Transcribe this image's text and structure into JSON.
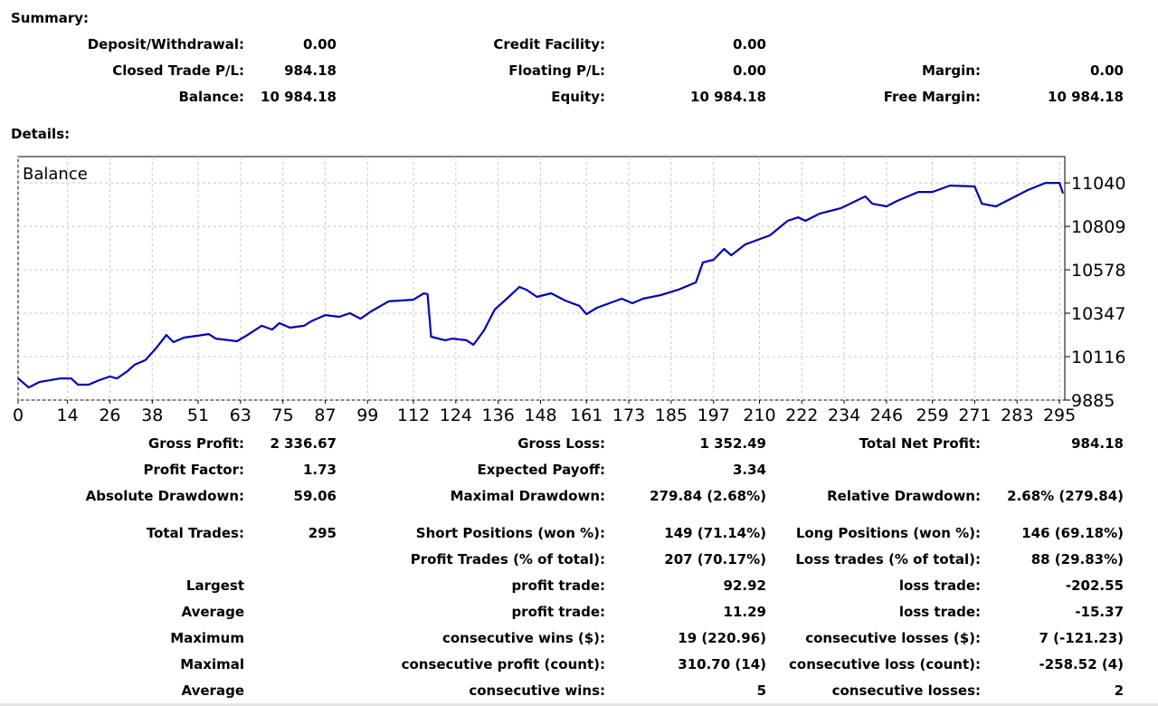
{
  "summary": {
    "heading": "Summary:",
    "rows": [
      [
        "Deposit/Withdrawal:",
        "0.00",
        "Credit Facility:",
        "0.00",
        null,
        null
      ],
      [
        "Closed Trade P/L:",
        "984.18",
        "Floating P/L:",
        "0.00",
        "Margin:",
        "0.00"
      ],
      [
        "Balance:",
        "10 984.18",
        "Equity:",
        "10 984.18",
        "Free Margin:",
        "10 984.18"
      ]
    ]
  },
  "details": {
    "heading": "Details:",
    "rows": [
      [
        "Gross Profit:",
        "2 336.67",
        "Gross Loss:",
        "1 352.49",
        "Total Net Profit:",
        "984.18"
      ],
      [
        "Profit Factor:",
        "1.73",
        "Expected Payoff:",
        "3.34",
        null,
        null
      ],
      [
        "Absolute Drawdown:",
        "59.06",
        "Maximal Drawdown:",
        "279.84 (2.68%)",
        "Relative Drawdown:",
        "2.68% (279.84)"
      ],
      [
        "Total Trades:",
        "295",
        "Short Positions (won %):",
        "149 (71.14%)",
        "Long Positions (won %):",
        "146 (69.18%)"
      ],
      [
        null,
        null,
        "Profit Trades (% of total):",
        "207 (70.17%)",
        "Loss trades (% of total):",
        "88 (29.83%)"
      ],
      [
        "Largest",
        null,
        "profit trade:",
        "92.92",
        "loss trade:",
        "-202.55"
      ],
      [
        "Average",
        null,
        "profit trade:",
        "11.29",
        "loss trade:",
        "-15.37"
      ],
      [
        "Maximum",
        null,
        "consecutive wins ($):",
        "19 (220.96)",
        "consecutive losses ($):",
        "7 (-121.23)"
      ],
      [
        "Maximal",
        null,
        "consecutive profit (count):",
        "310.70 (14)",
        "consecutive loss (count):",
        "-258.52 (4)"
      ],
      [
        "Average",
        null,
        "consecutive wins:",
        "5",
        "consecutive losses:",
        "2"
      ]
    ]
  },
  "chart_data": {
    "type": "line",
    "x": [
      0,
      3,
      6,
      12,
      15,
      17,
      20,
      23,
      26,
      28,
      31,
      33,
      36,
      39,
      42,
      44,
      47,
      54,
      56,
      62,
      65,
      69,
      72,
      74,
      77,
      81,
      83,
      87,
      91,
      94,
      97,
      100,
      105,
      112,
      115,
      116,
      117,
      121,
      123,
      127,
      129,
      132,
      135,
      139,
      142,
      144,
      147,
      151,
      155,
      159,
      161,
      164,
      171,
      174,
      177,
      182,
      187,
      192,
      194,
      197,
      200,
      202,
      206,
      213,
      218,
      221,
      223,
      227,
      233,
      240,
      242,
      246,
      249,
      255,
      259,
      264,
      271,
      273,
      277,
      280,
      286,
      291,
      295,
      296
    ],
    "series": [
      {
        "name": "Balance",
        "color": "#0000b4",
        "values": [
          10000,
          9952,
          9981,
          10000,
          10000,
          9967,
          9967,
          9991,
          10010,
          10000,
          10039,
          10073,
          10097,
          10159,
          10231,
          10193,
          10217,
          10236,
          10212,
          10198,
          10231,
          10280,
          10260,
          10294,
          10270,
          10280,
          10304,
          10337,
          10328,
          10347,
          10318,
          10357,
          10410,
          10419,
          10453,
          10448,
          10222,
          10203,
          10212,
          10203,
          10179,
          10256,
          10366,
          10434,
          10487,
          10472,
          10434,
          10453,
          10414,
          10386,
          10342,
          10376,
          10424,
          10400,
          10424,
          10443,
          10472,
          10511,
          10617,
          10631,
          10689,
          10655,
          10713,
          10761,
          10838,
          10857,
          10838,
          10876,
          10905,
          10968,
          10929,
          10915,
          10944,
          10992,
          10992,
          11026,
          11021,
          10929,
          10915,
          10944,
          11002,
          11040,
          11040,
          10984
        ]
      }
    ],
    "xlim": [
      0,
      296
    ],
    "ylim": [
      9885,
      11180
    ],
    "xticks": [
      0,
      14,
      26,
      38,
      51,
      63,
      75,
      87,
      99,
      112,
      124,
      136,
      148,
      161,
      173,
      185,
      197,
      210,
      222,
      234,
      246,
      259,
      271,
      283,
      295
    ],
    "yticks": [
      9885,
      10116,
      10347,
      10578,
      10809,
      11040
    ],
    "grid": true
  }
}
